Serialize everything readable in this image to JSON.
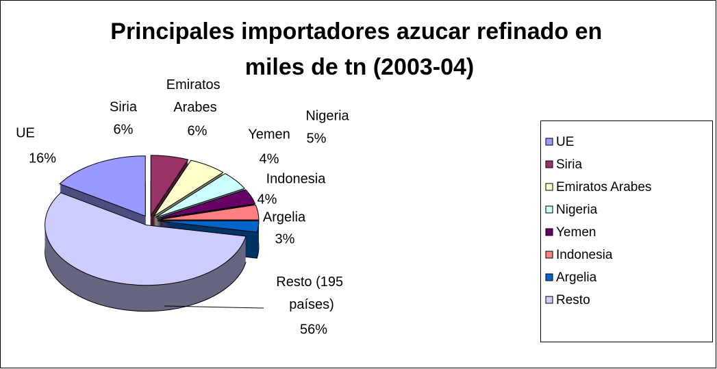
{
  "chart_data": {
    "type": "pie",
    "title": "Principales importadores azucar refinado en miles de tn (2003-04)",
    "categories": [
      "UE",
      "Siria",
      "Emiratos Arabes",
      "Nigeria",
      "Yemen",
      "Indonesia",
      "Argelia",
      "Resto"
    ],
    "labels": [
      "UE",
      "Siria",
      "Emiratos Arabes",
      "Nigeria",
      "Yemen",
      "Indonesia",
      "Argelia",
      "Resto (195 países)"
    ],
    "values": [
      16,
      6,
      6,
      5,
      4,
      4,
      3,
      56
    ],
    "value_labels": [
      "16%",
      "6%",
      "6%",
      "5%",
      "4%",
      "4%",
      "3%",
      "56%"
    ],
    "colors": [
      "#9999ff",
      "#993366",
      "#ffffcc",
      "#ccffff",
      "#660066",
      "#ff8080",
      "#0066cc",
      "#ccccff"
    ],
    "legend": "right"
  }
}
